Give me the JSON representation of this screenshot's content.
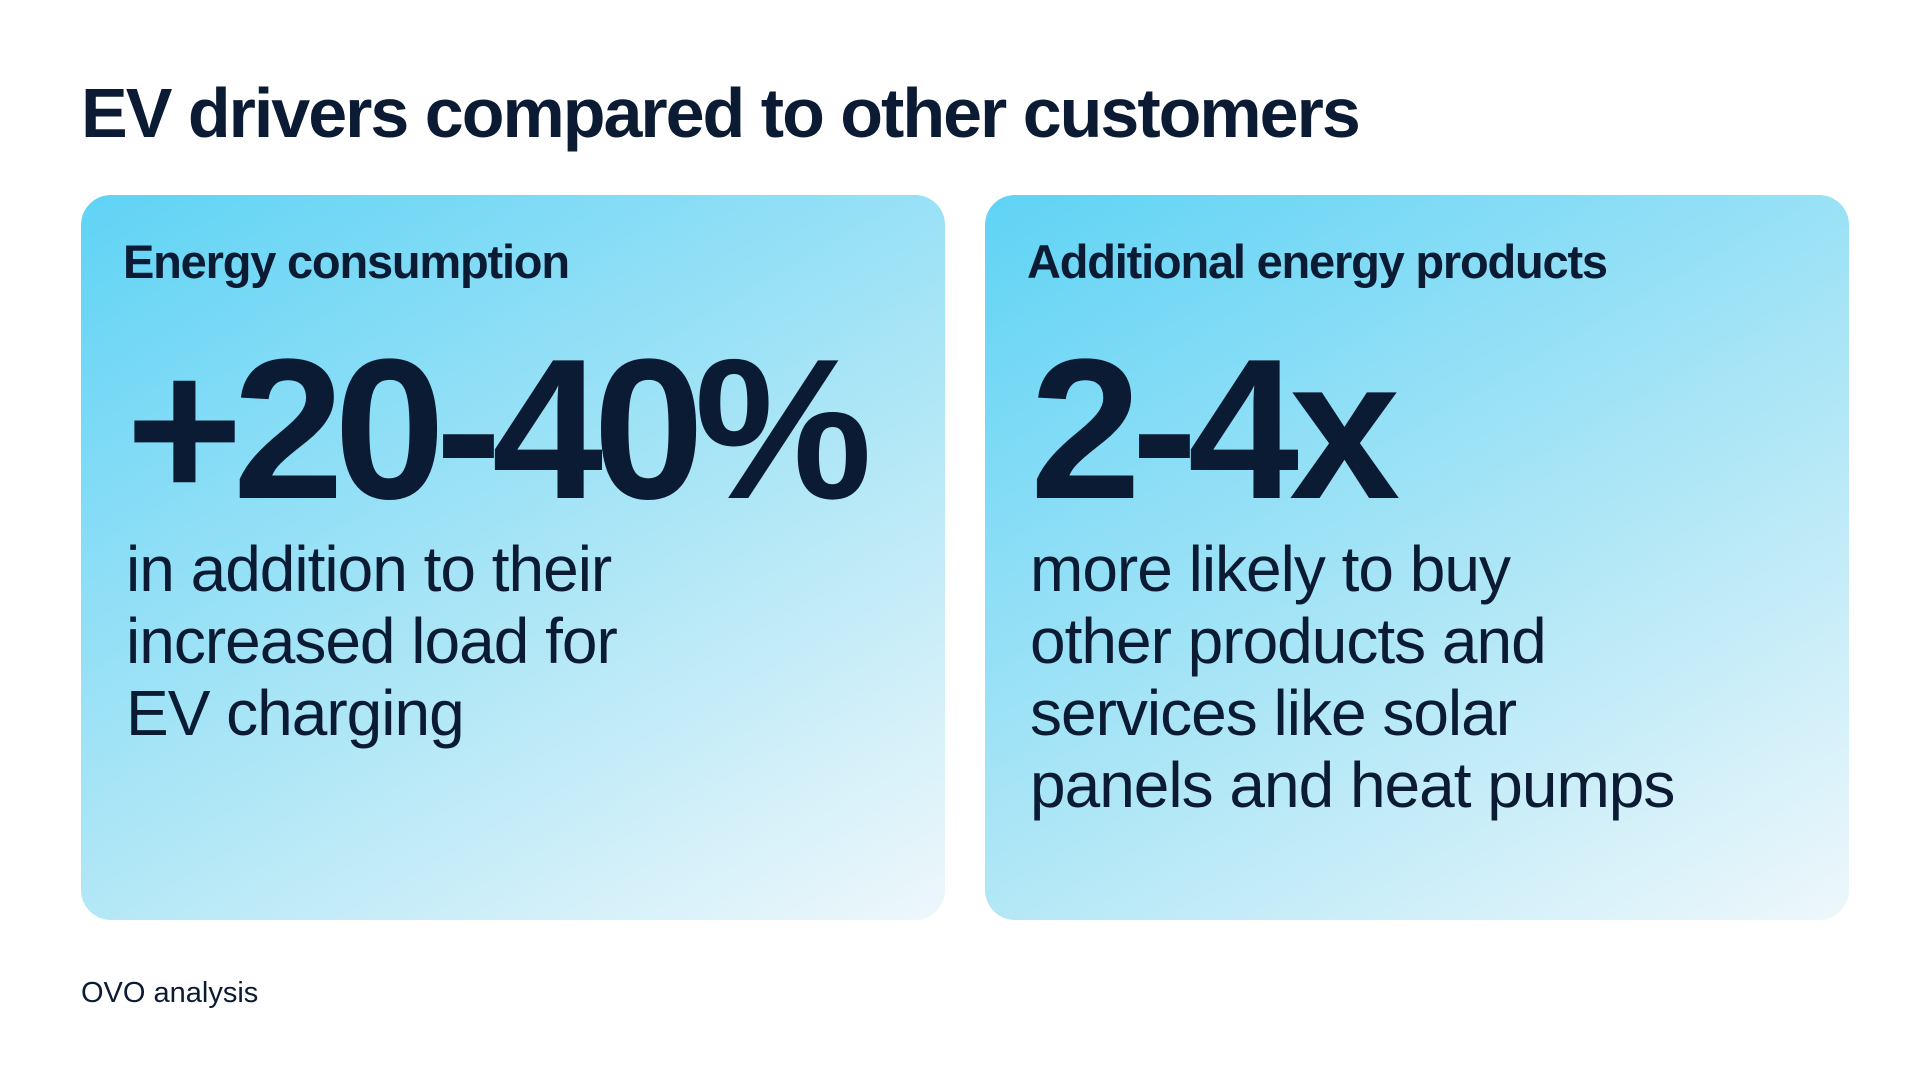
{
  "title": "EV drivers compared to other customers",
  "cards": [
    {
      "heading": "Energy consumption",
      "stat": "+20-40%",
      "description_lines": [
        "in addition to their",
        "increased load for",
        "EV charging"
      ]
    },
    {
      "heading": "Additional energy products",
      "stat": "2-4x",
      "description_lines": [
        "more likely to buy",
        "other products and",
        "services like solar",
        "panels and heat pumps"
      ]
    }
  ],
  "source": "OVO analysis",
  "colors": {
    "text": "#0b1b33",
    "card_gradient_start": "#5fd3f5",
    "card_gradient_mid": "#a9e5f6",
    "card_gradient_end": "#eef7fb",
    "background": "#ffffff"
  }
}
